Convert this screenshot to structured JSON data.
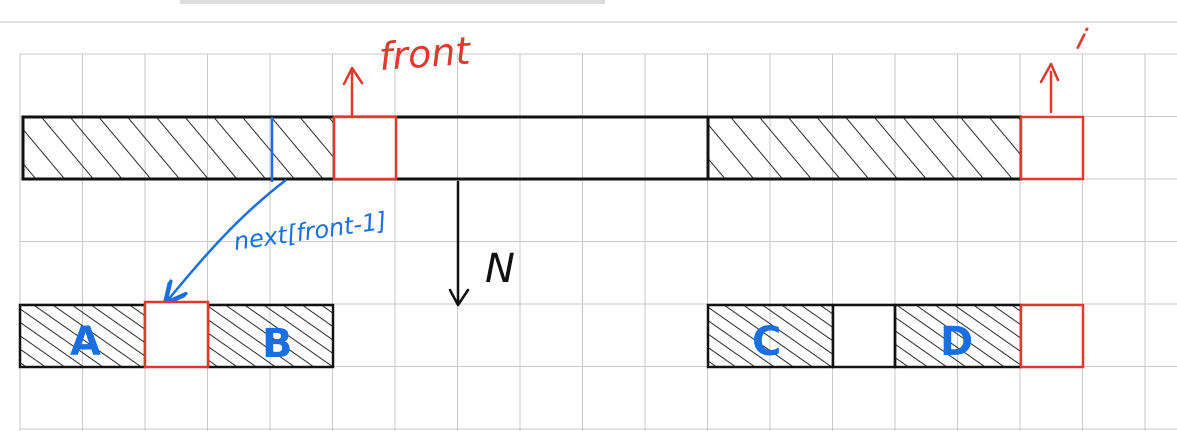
{
  "labels": {
    "front": "front",
    "i": "i",
    "next_expr": "next[front-1]",
    "n": "N",
    "a": "A",
    "b": "B",
    "c": "C",
    "d": "D"
  },
  "colors": {
    "ink": "#111111",
    "red": "#e0392e",
    "blue": "#1a6fe0",
    "grid": "#c9c9c9"
  }
}
